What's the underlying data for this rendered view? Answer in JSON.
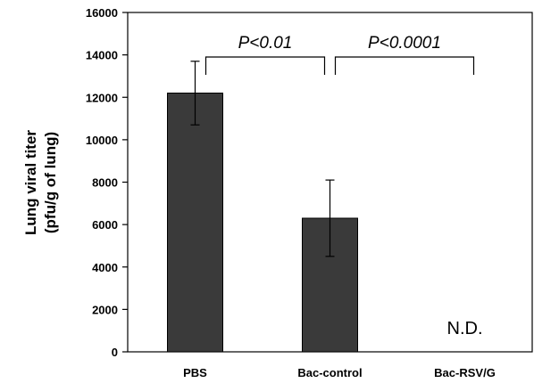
{
  "chart_data": {
    "type": "bar",
    "categories": [
      "PBS",
      "Bac-control",
      "Bac-RSV/G"
    ],
    "values": [
      12200,
      6300,
      null
    ],
    "errors": [
      1500,
      1800,
      null
    ],
    "ylabel_line1": "Lung viral titer",
    "ylabel_line2": "(pfu/g of lung)",
    "ylim": [
      0,
      16000
    ],
    "yticks": [
      "0",
      "2000",
      "4000",
      "6000",
      "8000",
      "10000",
      "12000",
      "14000",
      "16000"
    ],
    "grid": false,
    "bar_color": "#3a3a3a",
    "annotations": {
      "nd_label": "N.D.",
      "sig_1": "P<0.01",
      "sig_2": "P<0.0001"
    }
  }
}
